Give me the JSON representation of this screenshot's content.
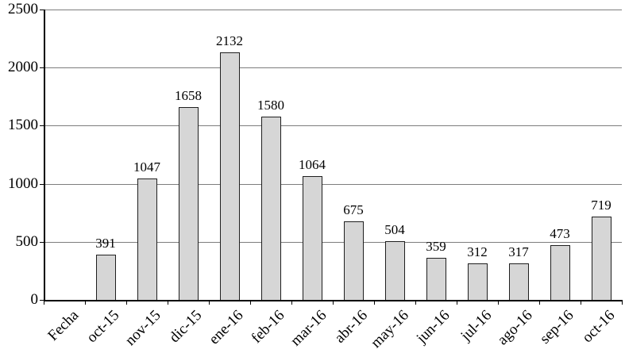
{
  "chart_data": {
    "type": "bar",
    "categories": [
      "Fecha",
      "oct-15",
      "nov-15",
      "dic-15",
      "ene-16",
      "feb-16",
      "mar-16",
      "abr-16",
      "may-16",
      "jun-16",
      "jul-16",
      "ago-16",
      "sep-16",
      "oct-16"
    ],
    "values": [
      null,
      391,
      1047,
      1658,
      2132,
      1580,
      1064,
      675,
      504,
      359,
      312,
      317,
      473,
      719
    ],
    "title": "",
    "xlabel": "",
    "ylabel": "",
    "ylim": [
      0,
      2500
    ],
    "ytick_step": 500,
    "y_tick_labels": [
      "0",
      "500",
      "1000",
      "1500",
      "2000",
      "2500"
    ],
    "grid": true,
    "legend": "none",
    "bar_fill": "#d6d6d6",
    "bar_border": "#1f1f1f",
    "gridline_color": "#7d7d7d",
    "axis_color": "#000000"
  }
}
